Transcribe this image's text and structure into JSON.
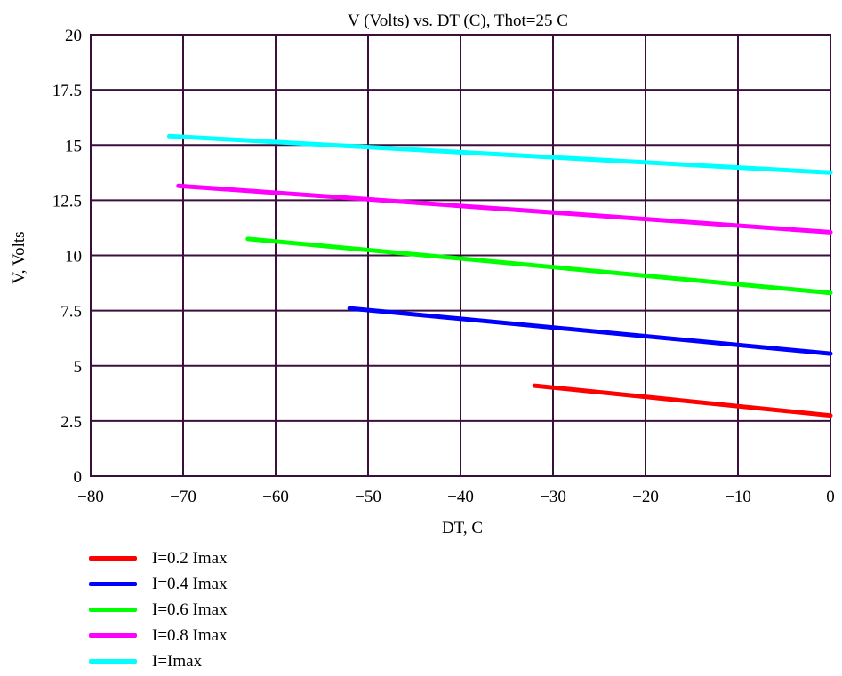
{
  "chart_data": {
    "type": "line",
    "title": "V (Volts) vs. DT (C), Thot=25 C",
    "xlabel": "DT, C",
    "ylabel": "V, Volts",
    "xlim": [
      -80,
      0
    ],
    "ylim": [
      0,
      20
    ],
    "xticks": [
      -80,
      -70,
      -60,
      -50,
      -40,
      -30,
      -20,
      -10,
      0
    ],
    "xtick_labels": [
      "−80",
      "−70",
      "−60",
      "−50",
      "−40",
      "−30",
      "−20",
      "−10",
      "0"
    ],
    "yticks": [
      0,
      2.5,
      5,
      7.5,
      10,
      12.5,
      15,
      17.5,
      20
    ],
    "ytick_labels": [
      "0",
      "2.5",
      "5",
      "7.5",
      "10",
      "12.5",
      "15",
      "17.5",
      "20"
    ],
    "grid": true,
    "legend_position": "below-left",
    "series": [
      {
        "name": "I=0.2 Imax",
        "color": "#ff0000",
        "x": [
          -32,
          0
        ],
        "y": [
          4.1,
          2.75
        ]
      },
      {
        "name": "I=0.4 Imax",
        "color": "#0000ff",
        "x": [
          -52,
          0
        ],
        "y": [
          7.6,
          5.55
        ]
      },
      {
        "name": "I=0.6 Imax",
        "color": "#00ff00",
        "x": [
          -63,
          0
        ],
        "y": [
          10.75,
          8.3
        ]
      },
      {
        "name": "I=0.8 Imax",
        "color": "#ff00ff",
        "x": [
          -70.5,
          0
        ],
        "y": [
          13.15,
          11.05
        ]
      },
      {
        "name": "I=Imax",
        "color": "#00ffff",
        "x": [
          -71.5,
          0
        ],
        "y": [
          15.4,
          13.75
        ]
      }
    ]
  }
}
